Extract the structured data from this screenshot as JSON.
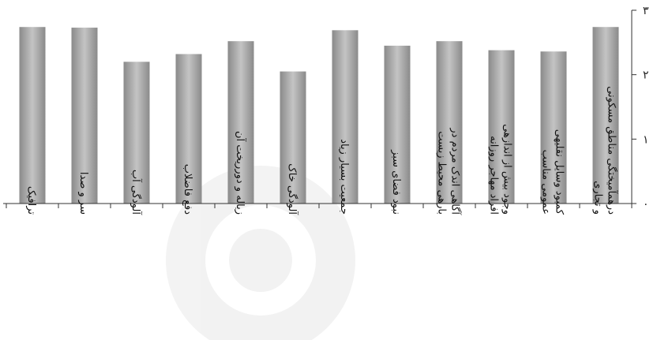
{
  "chart_data": {
    "type": "bar",
    "categories": [
      "ترافیک",
      "سر و صدا",
      "آلودگی آب",
      "دفع فاضلاب",
      "زباله و دورریخت آن",
      "آلودگی خاک",
      "جمعیت بسیار زیاد",
      "نبود فضای سبز",
      "آگاهی اندک مردم در بارهی محیط زیست",
      "وجود بیش از اندازهی افراد مهاجر روزانه",
      "کمبود وسایل نقلیهی عمومی مناسب",
      "درهمآمیختگی مناطق مسکونی و تجاری"
    ],
    "values": [
      2.74,
      2.73,
      2.2,
      2.32,
      2.52,
      2.05,
      2.69,
      2.45,
      2.52,
      2.38,
      2.36,
      2.74
    ],
    "ylim": [
      0,
      3
    ],
    "yticks": [
      "۰",
      "۱",
      "۲",
      "۳"
    ],
    "y_axis_side": "right",
    "grid": false,
    "legend": "none",
    "bar_color": "#8a8a8a",
    "bar_highlight_color": "#c4c4c4"
  }
}
